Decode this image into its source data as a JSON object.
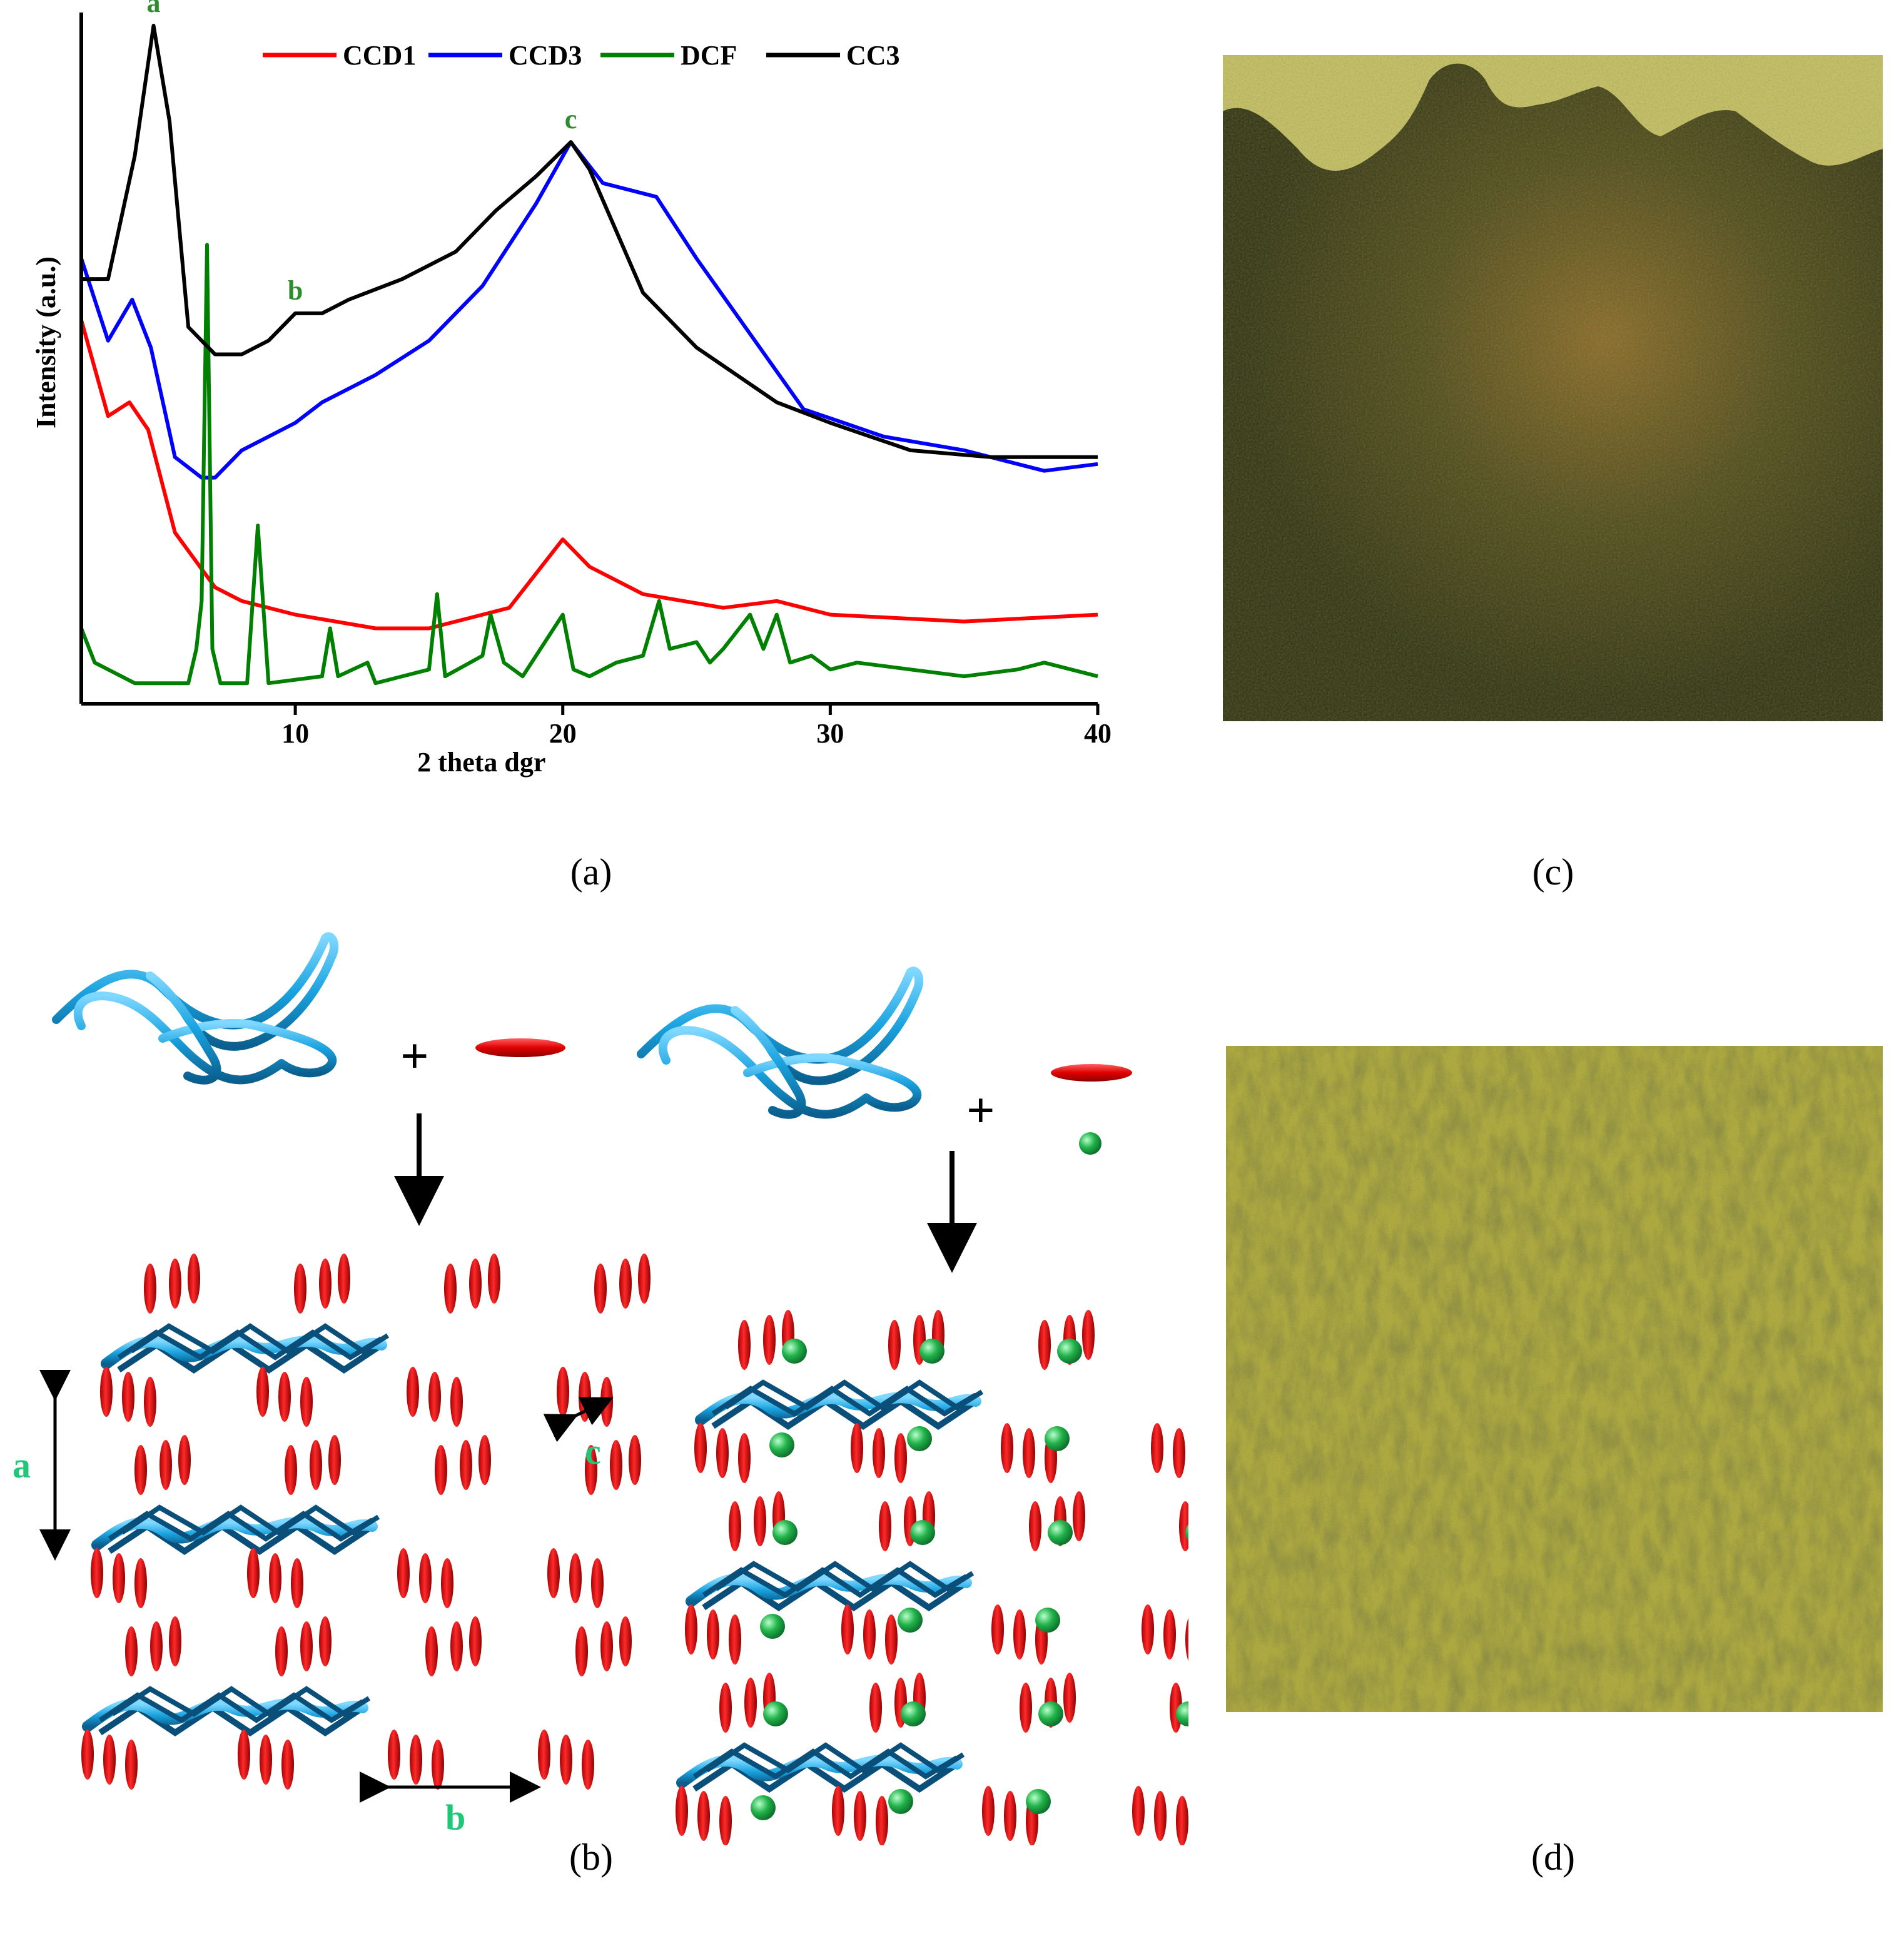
{
  "captions": {
    "a": "(a)",
    "b": "(b)",
    "c": "(c)",
    "d": "(d)"
  },
  "chart_data": {
    "type": "line",
    "xlabel": "2 theta dgr",
    "ylabel": "Intensity (a.u.)",
    "xlim": [
      2,
      40
    ],
    "xticks": [
      10,
      20,
      30,
      40
    ],
    "y_ticks_shown": false,
    "legend_position": "top",
    "peak_labels": [
      {
        "text": "a",
        "x": 4.7
      },
      {
        "text": "b",
        "x": 10.0
      },
      {
        "text": "c",
        "x": 20.3
      }
    ],
    "series": [
      {
        "name": "CCD1",
        "color": "#ff0000",
        "points": [
          [
            2,
            0.56
          ],
          [
            3,
            0.42
          ],
          [
            3.8,
            0.44
          ],
          [
            4.5,
            0.4
          ],
          [
            5.5,
            0.25
          ],
          [
            7,
            0.17
          ],
          [
            8,
            0.15
          ],
          [
            10,
            0.13
          ],
          [
            13,
            0.11
          ],
          [
            15,
            0.11
          ],
          [
            18,
            0.14
          ],
          [
            20,
            0.24
          ],
          [
            21,
            0.2
          ],
          [
            23,
            0.16
          ],
          [
            26,
            0.14
          ],
          [
            28,
            0.15
          ],
          [
            30,
            0.13
          ],
          [
            35,
            0.12
          ],
          [
            40,
            0.13
          ]
        ]
      },
      {
        "name": "CCD3",
        "color": "#0000ff",
        "points": [
          [
            2,
            0.65
          ],
          [
            3,
            0.53
          ],
          [
            3.9,
            0.59
          ],
          [
            4.6,
            0.52
          ],
          [
            5.5,
            0.36
          ],
          [
            6.5,
            0.33
          ],
          [
            7,
            0.33
          ],
          [
            8,
            0.37
          ],
          [
            10,
            0.41
          ],
          [
            11,
            0.44
          ],
          [
            13,
            0.48
          ],
          [
            15,
            0.53
          ],
          [
            17,
            0.61
          ],
          [
            19,
            0.73
          ],
          [
            20.3,
            0.82
          ],
          [
            21.5,
            0.76
          ],
          [
            23.5,
            0.74
          ],
          [
            25,
            0.65
          ],
          [
            27,
            0.54
          ],
          [
            29,
            0.43
          ],
          [
            30.5,
            0.41
          ],
          [
            32,
            0.39
          ],
          [
            35,
            0.37
          ],
          [
            38,
            0.34
          ],
          [
            40,
            0.35
          ]
        ]
      },
      {
        "name": "DCF",
        "color": "#008000",
        "points": [
          [
            2,
            0.11
          ],
          [
            2.5,
            0.06
          ],
          [
            4,
            0.03
          ],
          [
            6,
            0.03
          ],
          [
            6.3,
            0.08
          ],
          [
            6.5,
            0.15
          ],
          [
            6.7,
            0.67
          ],
          [
            6.9,
            0.08
          ],
          [
            7.2,
            0.03
          ],
          [
            8.2,
            0.03
          ],
          [
            8.6,
            0.26
          ],
          [
            9,
            0.03
          ],
          [
            11,
            0.04
          ],
          [
            11.3,
            0.11
          ],
          [
            11.6,
            0.04
          ],
          [
            12.7,
            0.06
          ],
          [
            13,
            0.03
          ],
          [
            15,
            0.05
          ],
          [
            15.3,
            0.16
          ],
          [
            15.6,
            0.04
          ],
          [
            17,
            0.07
          ],
          [
            17.3,
            0.13
          ],
          [
            17.8,
            0.06
          ],
          [
            18.5,
            0.04
          ],
          [
            20,
            0.13
          ],
          [
            20.4,
            0.05
          ],
          [
            21,
            0.04
          ],
          [
            22,
            0.06
          ],
          [
            23,
            0.07
          ],
          [
            23.6,
            0.15
          ],
          [
            24,
            0.08
          ],
          [
            25,
            0.09
          ],
          [
            25.5,
            0.06
          ],
          [
            26,
            0.08
          ],
          [
            27,
            0.13
          ],
          [
            27.5,
            0.08
          ],
          [
            28,
            0.13
          ],
          [
            28.5,
            0.06
          ],
          [
            29.3,
            0.07
          ],
          [
            30,
            0.05
          ],
          [
            31,
            0.06
          ],
          [
            33,
            0.05
          ],
          [
            35,
            0.04
          ],
          [
            37,
            0.05
          ],
          [
            38,
            0.06
          ],
          [
            40,
            0.04
          ]
        ]
      },
      {
        "name": "CC3",
        "color": "#000000",
        "points": [
          [
            2,
            0.62
          ],
          [
            3,
            0.62
          ],
          [
            4,
            0.8
          ],
          [
            4.7,
            0.99
          ],
          [
            5.3,
            0.85
          ],
          [
            6,
            0.55
          ],
          [
            7,
            0.51
          ],
          [
            8,
            0.51
          ],
          [
            9,
            0.53
          ],
          [
            10,
            0.57
          ],
          [
            11,
            0.57
          ],
          [
            12,
            0.59
          ],
          [
            14,
            0.62
          ],
          [
            16,
            0.66
          ],
          [
            17.5,
            0.72
          ],
          [
            19,
            0.77
          ],
          [
            20.3,
            0.82
          ],
          [
            21,
            0.78
          ],
          [
            22,
            0.69
          ],
          [
            23,
            0.6
          ],
          [
            25,
            0.52
          ],
          [
            28,
            0.44
          ],
          [
            30,
            0.41
          ],
          [
            33,
            0.37
          ],
          [
            36,
            0.36
          ],
          [
            40,
            0.36
          ]
        ]
      }
    ]
  },
  "diagram": {
    "axis_labels": {
      "a": "a",
      "b": "b",
      "c": "c"
    },
    "plus_sign": "+"
  }
}
